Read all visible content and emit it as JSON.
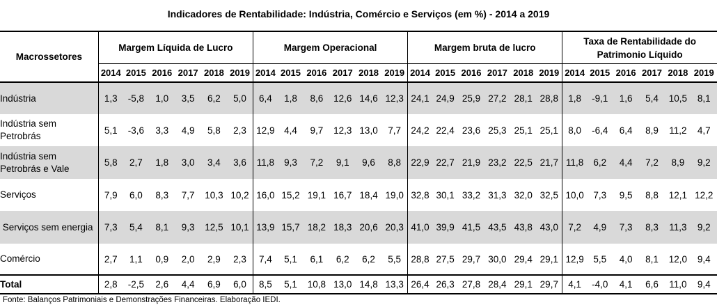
{
  "title": "Indicadores de Rentabilidade:  Indústria, Comércio e Serviços (em %) - 2014 a 2019",
  "header": {
    "sector": "Macrossetores",
    "groups": [
      {
        "line1": "Margem Líquida de Lucro",
        "line2": ""
      },
      {
        "line1": "Margem Operacional",
        "line2": ""
      },
      {
        "line1": "Margem bruta de lucro",
        "line2": ""
      },
      {
        "line1": "Taxa de Rentabilidade do",
        "line2": "Patrimonio Líquido"
      }
    ],
    "years": [
      "2014",
      "2015",
      "2016",
      "2017",
      "2018",
      "2019"
    ]
  },
  "rows": [
    {
      "line1": "Indústria",
      "line2": "",
      "values": [
        "1,3",
        "-5,8",
        "1,0",
        "3,5",
        "6,2",
        "5,0",
        "6,4",
        "1,8",
        "8,6",
        "12,6",
        "14,6",
        "12,3",
        "24,1",
        "24,9",
        "25,9",
        "27,2",
        "28,1",
        "28,8",
        "1,8",
        "-9,1",
        "1,6",
        "5,4",
        "10,5",
        "8,1"
      ]
    },
    {
      "line1": "Indústria sem",
      "line2": "Petrobrás",
      "values": [
        "5,1",
        "-3,6",
        "3,3",
        "4,9",
        "5,8",
        "2,3",
        "12,9",
        "4,4",
        "9,7",
        "12,3",
        "13,0",
        "7,7",
        "24,2",
        "22,4",
        "23,6",
        "25,3",
        "25,1",
        "25,1",
        "8,0",
        "-6,4",
        "6,4",
        "8,9",
        "11,2",
        "4,7"
      ]
    },
    {
      "line1": "Indústria sem",
      "line2": "Petrobrás e Vale",
      "values": [
        "5,8",
        "2,7",
        "1,8",
        "3,0",
        "3,4",
        "3,6",
        "11,8",
        "9,3",
        "7,2",
        "9,1",
        "9,6",
        "8,8",
        "22,9",
        "22,7",
        "21,9",
        "23,2",
        "22,5",
        "21,7",
        "11,8",
        "6,2",
        "4,4",
        "7,2",
        "8,9",
        "9,2"
      ]
    },
    {
      "line1": "Serviços",
      "line2": "",
      "values": [
        "7,9",
        "6,0",
        "8,3",
        "7,7",
        "10,3",
        "10,2",
        "16,0",
        "15,2",
        "19,1",
        "16,7",
        "18,4",
        "19,0",
        "32,8",
        "30,1",
        "33,2",
        "31,3",
        "32,0",
        "32,5",
        "10,0",
        "7,3",
        "9,5",
        "8,8",
        "12,1",
        "12,2"
      ]
    },
    {
      "line1": " Serviços sem energia",
      "line2": "",
      "values": [
        "7,3",
        "5,4",
        "8,1",
        "9,3",
        "12,5",
        "10,1",
        "13,9",
        "15,7",
        "18,2",
        "18,3",
        "20,6",
        "20,3",
        "41,0",
        "39,9",
        "41,5",
        "43,5",
        "43,8",
        "43,0",
        "7,2",
        "4,9",
        "7,3",
        "8,3",
        "11,3",
        "9,2"
      ]
    },
    {
      "line1": "Comércio",
      "line2": "",
      "values": [
        "2,7",
        "1,1",
        "0,9",
        "2,0",
        "2,9",
        "2,3",
        "7,4",
        "5,1",
        "6,1",
        "6,2",
        "6,2",
        "5,5",
        "28,8",
        "27,5",
        "29,7",
        "30,0",
        "29,4",
        "29,1",
        "12,9",
        "5,5",
        "4,0",
        "8,1",
        "12,0",
        "9,4"
      ]
    }
  ],
  "total": {
    "label": "Total",
    "values": [
      "2,8",
      "-2,5",
      "2,6",
      "4,4",
      "6,9",
      "6,0",
      "8,5",
      "5,1",
      "10,8",
      "13,0",
      "14,8",
      "13,3",
      "26,4",
      "26,3",
      "27,8",
      "28,4",
      "29,1",
      "29,7",
      "4,1",
      "-4,0",
      "4,1",
      "6,6",
      "11,0",
      "9,4"
    ]
  },
  "source": "Fonte: Balanços Patrimoniais e Demonstrações Financeiras. Elaboração IEDI.",
  "colors": {
    "band": "#d9d9d9",
    "border": "#000000"
  }
}
